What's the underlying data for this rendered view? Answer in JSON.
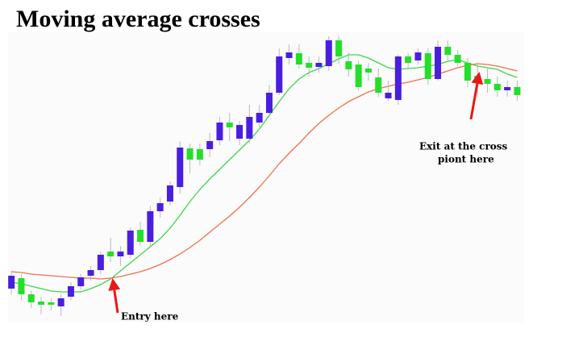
{
  "chart_data": {
    "type": "candlestick",
    "title": "Moving average crosses",
    "annotations": [
      "Entry here",
      "Exit at the cross",
      "piont here"
    ],
    "up_color": "#4a1ee0",
    "down_color": "#22e02a",
    "ylim": [
      0,
      418
    ],
    "open": [
      60,
      73,
      53,
      44,
      43,
      38,
      50,
      63,
      76,
      83,
      106,
      100,
      102,
      133,
      118,
      156,
      168,
      186,
      234,
      233,
      233,
      244,
      266,
      246,
      246,
      266,
      278,
      303,
      346,
      352,
      340,
      335,
      336,
      368,
      342,
      338,
      333,
      322,
      296,
      294,
      348,
      343,
      352,
      320,
      360,
      350,
      340,
      324,
      320,
      314,
      306,
      310
    ],
    "high": [
      82,
      78,
      58,
      50,
      48,
      53,
      68,
      78,
      88,
      106,
      123,
      113,
      136,
      143,
      163,
      173,
      193,
      243,
      240,
      240,
      253,
      273,
      278,
      268,
      288,
      288,
      313,
      358,
      363,
      363,
      348,
      348,
      373,
      373,
      353,
      343,
      340,
      333,
      318,
      350,
      352,
      358,
      358,
      368,
      368,
      356,
      346,
      338,
      333,
      323,
      318,
      318
    ],
    "low": [
      53,
      46,
      36,
      28,
      33,
      26,
      46,
      58,
      70,
      78,
      93,
      88,
      98,
      113,
      113,
      148,
      163,
      178,
      203,
      213,
      223,
      238,
      243,
      238,
      240,
      260,
      273,
      300,
      338,
      333,
      323,
      328,
      330,
      338,
      323,
      306,
      318,
      298,
      293,
      288,
      333,
      338,
      313,
      318,
      343,
      336,
      310,
      298,
      303,
      298,
      298,
      293
    ],
    "close": [
      76,
      53,
      43,
      40,
      40,
      48,
      63,
      74,
      83,
      102,
      100,
      106,
      132,
      118,
      156,
      166,
      188,
      235,
      220,
      220,
      243,
      266,
      260,
      263,
      273,
      278,
      303,
      348,
      353,
      338,
      334,
      340,
      368,
      348,
      332,
      310,
      328,
      303,
      303,
      348,
      340,
      353,
      320,
      360,
      350,
      340,
      318,
      320,
      314,
      306,
      310,
      300
    ],
    "lines": [
      {
        "color": "#3ed64a",
        "values": [
          68,
          66,
          63,
          60,
          57,
          56,
          56,
          56,
          60,
          65,
          72,
          82,
          92,
          102,
          112,
          122,
          135,
          151,
          168,
          183,
          196,
          208,
          220,
          232,
          244,
          258,
          275,
          292,
          308,
          320,
          328,
          333,
          339,
          345,
          350,
          350,
          346,
          340,
          334,
          332,
          333,
          334,
          336,
          338,
          342,
          344,
          340,
          336,
          334,
          332,
          326,
          322
        ]
      },
      {
        "color": "#f0704a",
        "values": [
          81,
          80,
          78,
          77,
          76,
          75,
          74,
          73,
          73,
          72,
          73,
          75,
          78,
          81,
          85,
          90,
          96,
          103,
          111,
          120,
          130,
          140,
          150,
          161,
          173,
          186,
          200,
          215,
          228,
          240,
          253,
          265,
          275,
          284,
          292,
          298,
          304,
          308,
          311,
          314,
          316,
          319,
          322,
          326,
          330,
          334,
          337,
          339,
          338,
          336,
          333,
          330
        ]
      }
    ]
  }
}
